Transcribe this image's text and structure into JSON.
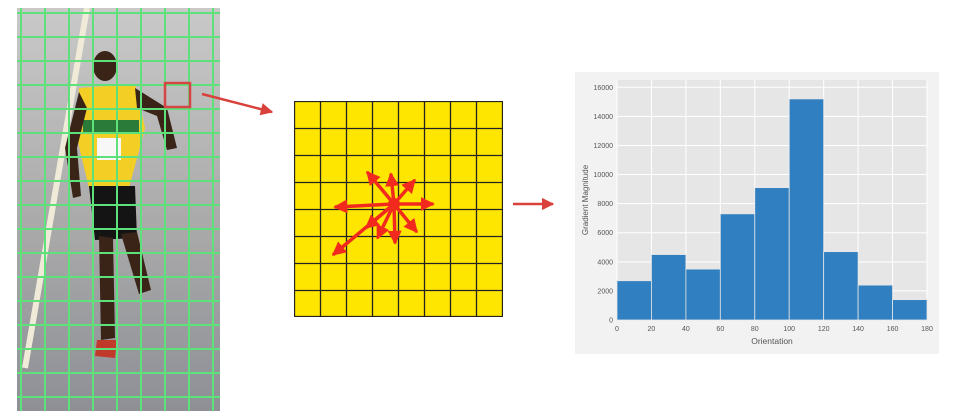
{
  "colors": {
    "grid_line": "#5ee07a",
    "highlight_box": "#d64545",
    "cell_fill": "#ffe600",
    "gradient_arrows": "#f22a1e",
    "flow_arrows": "#d9423c",
    "bar_fill": "#2f7fc1",
    "plot_background": "#e6e6e6"
  },
  "chart_data": {
    "type": "bar",
    "xlabel": "Orientation",
    "ylabel": "Gradient Magnitude",
    "bin_edges": [
      0,
      20,
      40,
      60,
      80,
      100,
      120,
      140,
      160,
      180
    ],
    "values": [
      2700,
      4500,
      3500,
      7300,
      9100,
      15200,
      4700,
      2400,
      1400
    ],
    "xlim": [
      0,
      180
    ],
    "ylim": [
      0,
      16500
    ],
    "xticks": [
      0,
      20,
      40,
      60,
      80,
      100,
      120,
      140,
      160,
      180
    ],
    "yticks": [
      0,
      2000,
      4000,
      6000,
      8000,
      10000,
      12000,
      14000,
      16000
    ],
    "grid": true
  }
}
